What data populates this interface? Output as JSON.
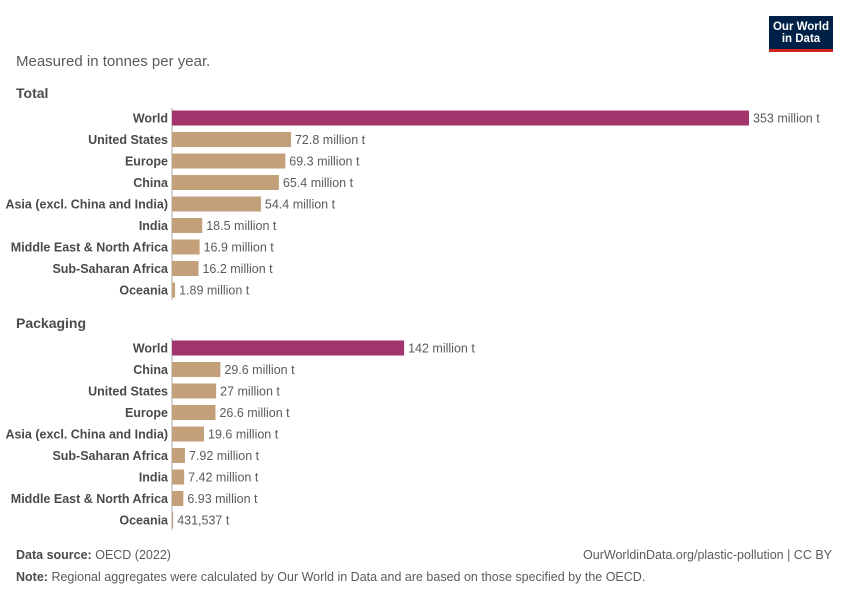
{
  "logo": {
    "line1": "Our World",
    "line2": "in Data"
  },
  "subtitle": "Measured in tonnes per year.",
  "colors": {
    "world": "#a2356b",
    "region": "#c4a07a",
    "axis": "#aaaaaa"
  },
  "chart_data": [
    {
      "type": "bar",
      "title": "Total",
      "categories": [
        "World",
        "United States",
        "Europe",
        "China",
        "Asia (excl. China and India)",
        "India",
        "Middle East & North Africa",
        "Sub-Saharan Africa",
        "Oceania"
      ],
      "values": [
        353000000,
        72800000,
        69300000,
        65400000,
        54400000,
        18500000,
        16900000,
        16200000,
        1890000
      ],
      "labels": [
        "353 million t",
        "72.8 million t",
        "69.3 million t",
        "65.4 million t",
        "54.4 million t",
        "18.5 million t",
        "16.9 million t",
        "16.2 million t",
        "1.89 million t"
      ]
    },
    {
      "type": "bar",
      "title": "Packaging",
      "categories": [
        "World",
        "China",
        "United States",
        "Europe",
        "Asia (excl. China and India)",
        "Sub-Saharan Africa",
        "India",
        "Middle East & North Africa",
        "Oceania"
      ],
      "values": [
        142000000,
        29600000,
        27000000,
        26600000,
        19600000,
        7920000,
        7420000,
        6930000,
        431537
      ],
      "labels": [
        "142 million t",
        "29.6 million t",
        "27 million t",
        "26.6 million t",
        "19.6 million t",
        "7.92 million t",
        "7.42 million t",
        "6.93 million t",
        "431,537 t"
      ]
    }
  ],
  "footer": {
    "source_label": "Data source:",
    "source": "OECD (2022)",
    "url": "OurWorldinData.org/plastic-pollution | CC BY",
    "note_label": "Note:",
    "note": "Regional aggregates were calculated by Our World in Data and are based on those specified by the OECD."
  }
}
